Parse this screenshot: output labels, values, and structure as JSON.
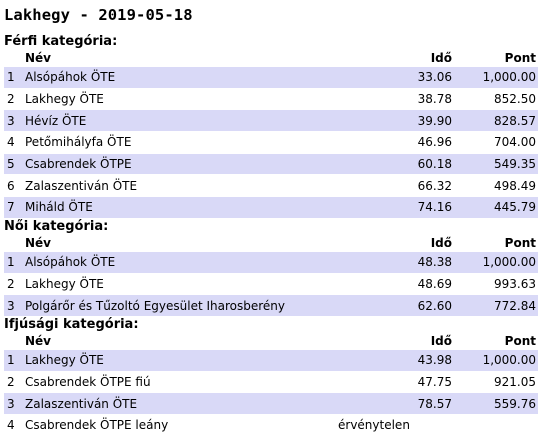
{
  "page": {
    "title": "Lakhegy - 2019-05-18"
  },
  "headers": {
    "name": "Név",
    "time": "Idő",
    "points": "Pont"
  },
  "sections": [
    {
      "title": "Férfi kategória:",
      "rows": [
        {
          "rank": "1",
          "name": "Alsópáhok ÖTE",
          "time": "33.06",
          "points": "1,000.00"
        },
        {
          "rank": "2",
          "name": "Lakhegy ÖTE",
          "time": "38.78",
          "points": "852.50"
        },
        {
          "rank": "3",
          "name": "Hévíz ÖTE",
          "time": "39.90",
          "points": "828.57"
        },
        {
          "rank": "4",
          "name": "Petőmihályfa ÖTE",
          "time": "46.96",
          "points": "704.00"
        },
        {
          "rank": "5",
          "name": "Csabrendek ÖTPE",
          "time": "60.18",
          "points": "549.35"
        },
        {
          "rank": "6",
          "name": "Zalaszentiván ÖTE",
          "time": "66.32",
          "points": "498.49"
        },
        {
          "rank": "7",
          "name": "Miháld ÖTE",
          "time": "74.16",
          "points": "445.79"
        }
      ]
    },
    {
      "title": "Női kategória:",
      "rows": [
        {
          "rank": "1",
          "name": "Alsópáhok ÖTE",
          "time": "48.38",
          "points": "1,000.00"
        },
        {
          "rank": "2",
          "name": "Lakhegy ÖTE",
          "time": "48.69",
          "points": "993.63"
        },
        {
          "rank": "3",
          "name": "Polgárőr és Tűzoltó Egyesület Iharosberény",
          "time": "62.60",
          "points": "772.84"
        }
      ]
    },
    {
      "title": "Ifjúsági kategória:",
      "rows": [
        {
          "rank": "1",
          "name": "Lakhegy ÖTE",
          "time": "43.98",
          "points": "1,000.00"
        },
        {
          "rank": "2",
          "name": "Csabrendek ÖTPE fiú",
          "time": "47.75",
          "points": "921.05"
        },
        {
          "rank": "3",
          "name": "Zalaszentiván ÖTE",
          "time": "78.57",
          "points": "559.76"
        },
        {
          "rank": "4",
          "name": "Csabrendek ÖTPE leány",
          "time": "",
          "points": "",
          "status": "érvénytelen"
        }
      ]
    }
  ]
}
